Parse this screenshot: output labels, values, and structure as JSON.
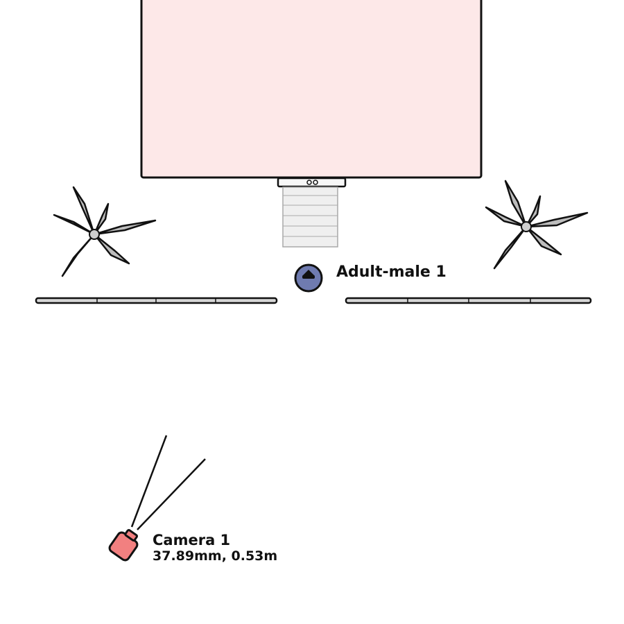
{
  "scene": {
    "building": {
      "fill": "#fde8e8",
      "stroke": "#111111"
    },
    "steps": {
      "fill": "#eeeeee",
      "stroke": "#999999"
    },
    "plants": [
      {
        "icon": "palm-tree-icon"
      },
      {
        "icon": "palm-tree-icon"
      }
    ],
    "fences": [
      {
        "icon": "fence-icon"
      },
      {
        "icon": "fence-icon"
      }
    ],
    "actor": {
      "label": "Adult-male 1",
      "icon": "person-marker-icon",
      "color": "#6f7bb0"
    },
    "camera": {
      "label": "Camera 1",
      "details": "37.89mm, 0.53m",
      "icon": "camera-icon",
      "color": "#f28080"
    }
  }
}
